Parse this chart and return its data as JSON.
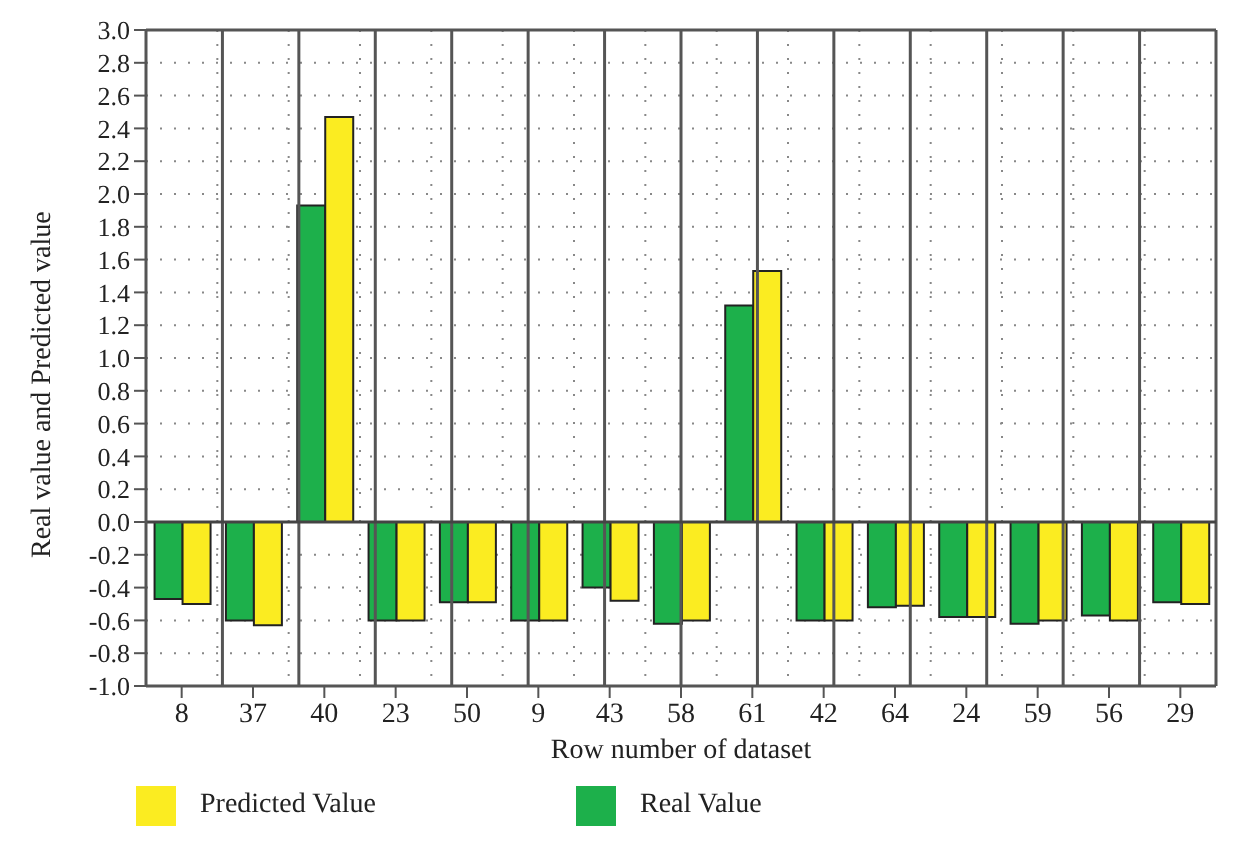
{
  "chart_data": {
    "type": "bar",
    "xlabel": "Row number of dataset",
    "ylabel": "Real value and Predicted value",
    "categories": [
      "8",
      "37",
      "40",
      "23",
      "50",
      "9",
      "43",
      "58",
      "61",
      "42",
      "64",
      "24",
      "59",
      "56",
      "29"
    ],
    "series": [
      {
        "name": "Real Value",
        "color": "#1db04b",
        "values": [
          -0.47,
          -0.6,
          1.93,
          -0.6,
          -0.49,
          -0.6,
          -0.4,
          -0.62,
          1.32,
          -0.6,
          -0.52,
          -0.58,
          -0.62,
          -0.57,
          -0.49
        ]
      },
      {
        "name": "Predicted Value",
        "color": "#fbec21",
        "values": [
          -0.5,
          -0.63,
          2.47,
          -0.6,
          -0.49,
          -0.6,
          -0.48,
          -0.6,
          1.53,
          -0.6,
          -0.51,
          -0.58,
          -0.6,
          -0.6,
          -0.5
        ]
      }
    ],
    "ylim": [
      -1,
      3
    ],
    "yticks": [
      {
        "value": -1,
        "label": "-1.0"
      },
      {
        "value": -0.8,
        "label": "-0.8"
      },
      {
        "value": -0.6,
        "label": "-0.6"
      },
      {
        "value": -0.4,
        "label": "-0.4"
      },
      {
        "value": -0.2,
        "label": "-0.2"
      },
      {
        "value": 0,
        "label": "0.0"
      },
      {
        "value": 0.2,
        "label": "0.2"
      },
      {
        "value": 0.4,
        "label": "0.4"
      },
      {
        "value": 0.6,
        "label": "0.6"
      },
      {
        "value": 0.8,
        "label": "0.8"
      },
      {
        "value": 1,
        "label": "1.0"
      },
      {
        "value": 1.2,
        "label": "1.2"
      },
      {
        "value": 1.4,
        "label": "1.4"
      },
      {
        "value": 1.6,
        "label": "1.6"
      },
      {
        "value": 1.8,
        "label": "1.8"
      },
      {
        "value": 2,
        "label": "2.0"
      },
      {
        "value": 2.2,
        "label": "2.2"
      },
      {
        "value": 2.4,
        "label": "2.4"
      },
      {
        "value": 2.6,
        "label": "2.6"
      },
      {
        "value": 2.8,
        "label": "2.8"
      },
      {
        "value": 3,
        "label": "3.0"
      }
    ],
    "grid": true,
    "legend": "bottom left"
  }
}
